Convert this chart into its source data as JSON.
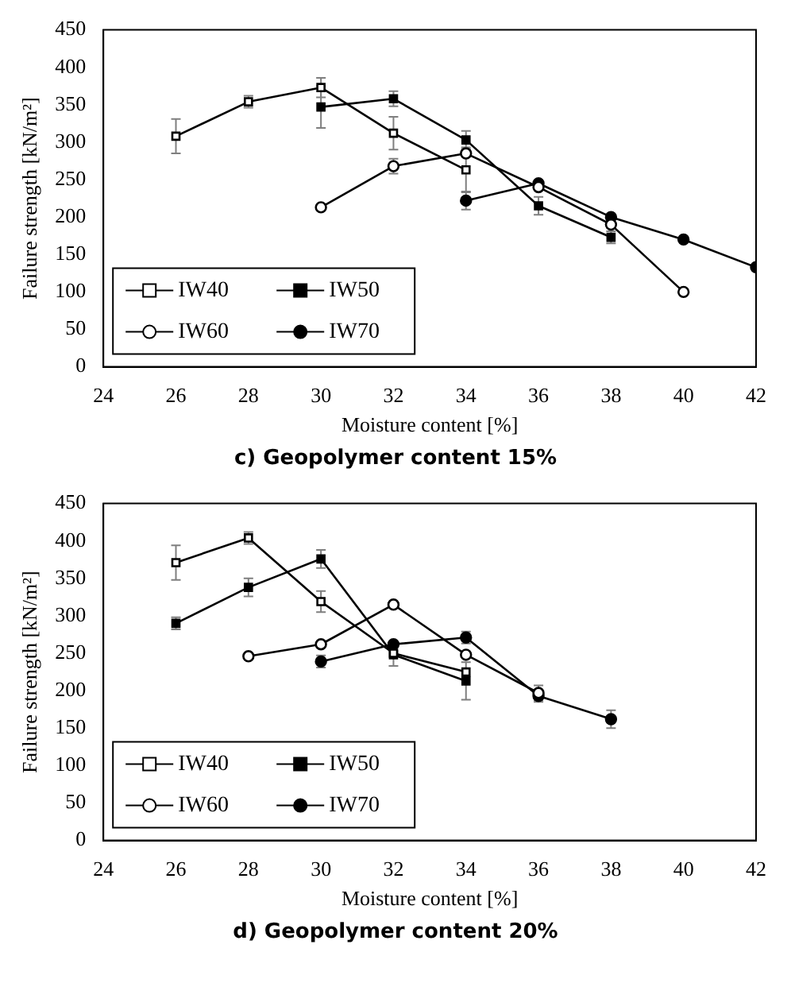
{
  "chart_data": [
    {
      "type": "line",
      "title": "c) Geopolymer content 15%",
      "xlabel": "Moisture content [%]",
      "ylabel": "Failure strength [kN/m²]",
      "xlim": [
        24,
        42
      ],
      "xticks": [
        24,
        26,
        28,
        30,
        32,
        34,
        36,
        38,
        40,
        42
      ],
      "ylim": [
        0,
        450
      ],
      "yticks": [
        0,
        50,
        100,
        150,
        200,
        250,
        300,
        350,
        400,
        450
      ],
      "grid": false,
      "legend": "bottom left",
      "series": [
        {
          "name": "IW40",
          "color": "#000000",
          "marker": "square",
          "x": [
            26,
            28,
            30,
            32,
            34
          ],
          "values": [
            308,
            354,
            373,
            312,
            263
          ],
          "errors": [
            23,
            8,
            13,
            22,
            30
          ]
        },
        {
          "name": "IW50",
          "color": "#000000",
          "marker": "square",
          "x": [
            30,
            32,
            34,
            36,
            38
          ],
          "values": [
            347,
            358,
            303,
            215,
            173
          ],
          "errors": [
            28,
            10,
            12,
            12,
            8
          ]
        },
        {
          "name": "IW60",
          "color": "#000000",
          "marker": "circle",
          "x": [
            30,
            32,
            34,
            36,
            38,
            40
          ],
          "values": [
            213,
            268,
            285,
            240,
            190,
            100
          ],
          "errors": [
            null,
            10,
            null,
            null,
            null,
            null
          ]
        },
        {
          "name": "IW70",
          "color": "#000000",
          "marker": "circle",
          "x": [
            34,
            36,
            38,
            40,
            42
          ],
          "values": [
            222,
            245,
            200,
            170,
            133
          ],
          "errors": [
            12,
            null,
            null,
            null,
            null
          ]
        }
      ]
    },
    {
      "type": "line",
      "title": "d) Geopolymer content 20%",
      "xlabel": "Moisture content [%]",
      "ylabel": "Failure strength [kN/m²]",
      "xlim": [
        24,
        42
      ],
      "xticks": [
        24,
        26,
        28,
        30,
        32,
        34,
        36,
        38,
        40,
        42
      ],
      "ylim": [
        0,
        450
      ],
      "yticks": [
        0,
        50,
        100,
        150,
        200,
        250,
        300,
        350,
        400,
        450
      ],
      "grid": false,
      "legend": "bottom left",
      "series": [
        {
          "name": "IW40",
          "color": "#000000",
          "marker": "square",
          "x": [
            26,
            28,
            30,
            32,
            34
          ],
          "values": [
            371,
            404,
            319,
            250,
            225
          ],
          "errors": [
            23,
            8,
            14,
            null,
            null
          ]
        },
        {
          "name": "IW50",
          "color": "#000000",
          "marker": "square",
          "x": [
            26,
            28,
            30,
            32,
            34
          ],
          "values": [
            290,
            338,
            376,
            248,
            213
          ],
          "errors": [
            8,
            12,
            12,
            15,
            25
          ]
        },
        {
          "name": "IW60",
          "color": "#000000",
          "marker": "circle",
          "x": [
            28,
            30,
            32,
            34,
            36
          ],
          "values": [
            246,
            262,
            315,
            248,
            197
          ],
          "errors": [
            null,
            null,
            null,
            null,
            10
          ]
        },
        {
          "name": "IW70",
          "color": "#000000",
          "marker": "circle",
          "x": [
            30,
            32,
            34,
            36,
            38
          ],
          "values": [
            239,
            262,
            271,
            193,
            162
          ],
          "errors": [
            8,
            null,
            8,
            8,
            12
          ]
        }
      ]
    }
  ]
}
